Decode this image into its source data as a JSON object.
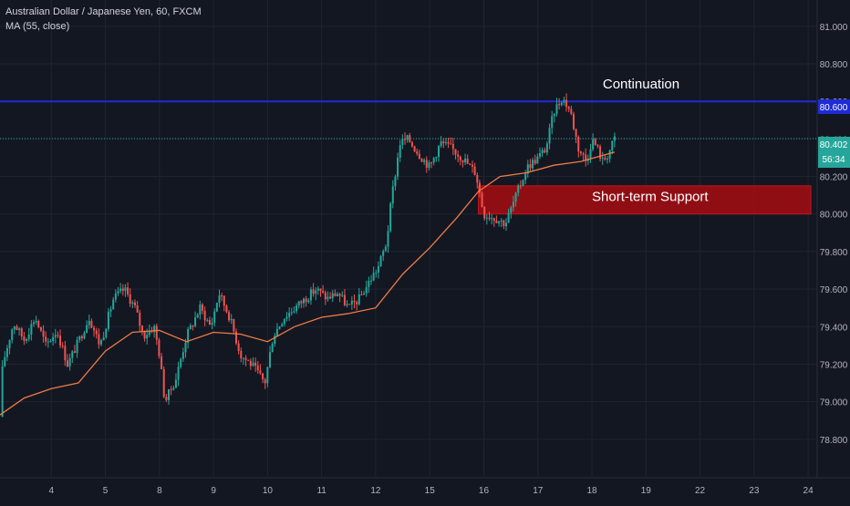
{
  "legend": {
    "symbol_line": "Australian Dollar / Japanese Yen, 60, FXCM",
    "indicator_line": "MA (55, close)"
  },
  "price_badges": {
    "last_price": "80.402",
    "countdown": "56:34",
    "level_line": "80.600"
  },
  "annotations": {
    "continuation": "Continuation",
    "support": "Short-term Support"
  },
  "colors": {
    "background": "#131722",
    "grid": "#1f2433",
    "up": "#26a69a",
    "down": "#ef5350",
    "ma": "#ef7b45",
    "level": "#1e2bd6",
    "support_box": "#9a0e14",
    "last_price_line": "#26a69a"
  },
  "chart_data": {
    "type": "candlestick",
    "title": "Australian Dollar / Japanese Yen, 60, FXCM",
    "x_ticks": [
      "4",
      "5",
      "8",
      "9",
      "10",
      "11",
      "12",
      "15",
      "16",
      "17",
      "18",
      "19",
      "22",
      "23",
      "24"
    ],
    "x_tick_values": [
      1,
      2,
      3,
      4,
      5,
      6,
      7,
      8,
      9,
      10,
      11,
      12,
      13,
      14,
      15
    ],
    "xlim": [
      0.05,
      15.15
    ],
    "ylim": [
      78.6,
      81.14
    ],
    "y_ticks": [
      78.8,
      79.0,
      79.2,
      79.4,
      79.6,
      79.8,
      80.0,
      80.2,
      80.4,
      80.6,
      80.8,
      81.0
    ],
    "y_tick_labels": [
      "78.800",
      "79.000",
      "79.200",
      "79.400",
      "79.600",
      "79.800",
      "80.000",
      "80.200",
      "80.400",
      "80.600",
      "80.800",
      "81.000"
    ],
    "grid": true,
    "price_anchors": [
      [
        0.05,
        78.92
      ],
      [
        0.1,
        79.2
      ],
      [
        0.3,
        79.42
      ],
      [
        0.5,
        79.33
      ],
      [
        0.7,
        79.45
      ],
      [
        0.9,
        79.3
      ],
      [
        1.1,
        79.38
      ],
      [
        1.3,
        79.2
      ],
      [
        1.5,
        79.32
      ],
      [
        1.7,
        79.45
      ],
      [
        1.9,
        79.3
      ],
      [
        2.15,
        79.55
      ],
      [
        2.35,
        79.6
      ],
      [
        2.55,
        79.5
      ],
      [
        2.7,
        79.35
      ],
      [
        2.9,
        79.4
      ],
      [
        3.0,
        79.25
      ],
      [
        3.1,
        79.0
      ],
      [
        3.3,
        79.12
      ],
      [
        3.5,
        79.35
      ],
      [
        3.75,
        79.5
      ],
      [
        3.95,
        79.4
      ],
      [
        4.1,
        79.58
      ],
      [
        4.3,
        79.45
      ],
      [
        4.5,
        79.25
      ],
      [
        4.7,
        79.2
      ],
      [
        4.95,
        79.1
      ],
      [
        5.1,
        79.35
      ],
      [
        5.3,
        79.45
      ],
      [
        5.5,
        79.5
      ],
      [
        5.7,
        79.55
      ],
      [
        5.9,
        79.6
      ],
      [
        6.1,
        79.55
      ],
      [
        6.3,
        79.58
      ],
      [
        6.5,
        79.5
      ],
      [
        6.7,
        79.55
      ],
      [
        6.9,
        79.65
      ],
      [
        7.05,
        79.72
      ],
      [
        7.2,
        79.85
      ],
      [
        7.3,
        80.1
      ],
      [
        7.45,
        80.38
      ],
      [
        7.6,
        80.4
      ],
      [
        7.8,
        80.32
      ],
      [
        8.0,
        80.25
      ],
      [
        8.2,
        80.38
      ],
      [
        8.4,
        80.35
      ],
      [
        8.6,
        80.3
      ],
      [
        8.85,
        80.22
      ],
      [
        9.0,
        80.0
      ],
      [
        9.2,
        79.98
      ],
      [
        9.4,
        79.95
      ],
      [
        9.6,
        80.1
      ],
      [
        9.8,
        80.25
      ],
      [
        10.0,
        80.3
      ],
      [
        10.15,
        80.35
      ],
      [
        10.3,
        80.55
      ],
      [
        10.45,
        80.62
      ],
      [
        10.6,
        80.55
      ],
      [
        10.75,
        80.35
      ],
      [
        10.9,
        80.28
      ],
      [
        11.0,
        80.4
      ],
      [
        11.1,
        80.35
      ],
      [
        11.2,
        80.28
      ],
      [
        11.3,
        80.32
      ],
      [
        11.42,
        80.4
      ]
    ],
    "ma_anchors": [
      [
        0.05,
        78.93
      ],
      [
        0.5,
        79.02
      ],
      [
        1.0,
        79.07
      ],
      [
        1.5,
        79.1
      ],
      [
        2.0,
        79.27
      ],
      [
        2.5,
        79.37
      ],
      [
        3.0,
        79.38
      ],
      [
        3.5,
        79.32
      ],
      [
        4.0,
        79.37
      ],
      [
        4.5,
        79.36
      ],
      [
        5.0,
        79.32
      ],
      [
        5.5,
        79.4
      ],
      [
        6.0,
        79.45
      ],
      [
        6.5,
        79.47
      ],
      [
        7.0,
        79.5
      ],
      [
        7.5,
        79.68
      ],
      [
        8.0,
        79.82
      ],
      [
        8.5,
        79.98
      ],
      [
        8.9,
        80.12
      ],
      [
        9.3,
        80.2
      ],
      [
        9.8,
        80.22
      ],
      [
        10.3,
        80.26
      ],
      [
        10.8,
        80.28
      ],
      [
        11.42,
        80.33
      ]
    ],
    "level_line": 80.6,
    "last_price": 80.402,
    "support_zone": {
      "x_start": 8.9,
      "x_end": 15.05,
      "y_low": 80.0,
      "y_high": 80.15
    },
    "annotation_positions": {
      "continuation": [
        11.2,
        80.67
      ],
      "support": [
        11.0,
        80.07
      ]
    }
  }
}
